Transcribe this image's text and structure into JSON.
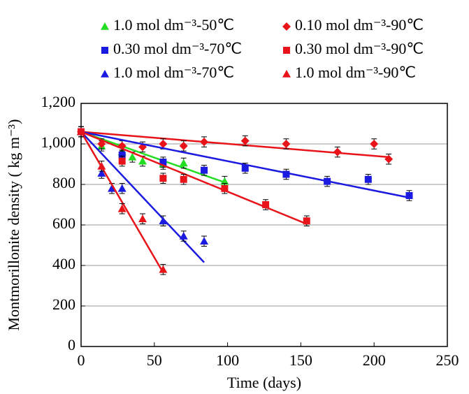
{
  "chart_data": {
    "type": "scatter",
    "x_label": "Time (days)",
    "y_label": "Montmorillonite density ( kg m⁻³)",
    "xlim": [
      0,
      250
    ],
    "xticks": [
      0,
      50,
      100,
      150,
      200,
      250
    ],
    "ylim": [
      0,
      1200
    ],
    "yticks": [
      0,
      200,
      400,
      600,
      800,
      {
        "value": 1000,
        "label": "1,000"
      },
      {
        "value": 1200,
        "label": "1,200"
      }
    ],
    "grid": true,
    "series": [
      {
        "name": "1.0 mol dm⁻³-50℃",
        "color": "#22dd22",
        "marker": "triangle",
        "x": [
          0,
          14,
          28,
          35,
          42,
          56,
          70,
          98
        ],
        "values": [
          1060,
          990,
          960,
          935,
          915,
          900,
          905,
          815
        ],
        "errors": [
          25,
          25,
          25,
          25,
          25,
          25,
          25,
          25
        ],
        "fit": {
          "x": [
            0,
            98
          ],
          "values": [
            1060,
            810
          ]
        }
      },
      {
        "name": "0.10 mol dm⁻³-90℃",
        "color": "#e8141a",
        "marker": "diamond",
        "x": [
          0,
          14,
          28,
          42,
          56,
          70,
          84,
          112,
          140,
          175,
          200,
          210
        ],
        "values": [
          1060,
          1000,
          990,
          985,
          1000,
          990,
          1010,
          1015,
          1000,
          960,
          1000,
          925
        ],
        "errors": [
          25,
          25,
          25,
          25,
          25,
          25,
          25,
          25,
          25,
          25,
          25,
          25
        ],
        "fit": {
          "x": [
            0,
            210
          ],
          "values": [
            1060,
            935
          ]
        }
      },
      {
        "name": "0.30 mol dm⁻³-70℃",
        "color": "#1a1ae0",
        "marker": "square",
        "x": [
          0,
          28,
          56,
          84,
          112,
          140,
          168,
          196,
          224
        ],
        "values": [
          1060,
          945,
          910,
          870,
          880,
          850,
          815,
          825,
          745
        ],
        "errors": [
          25,
          25,
          25,
          25,
          25,
          25,
          25,
          25,
          25
        ],
        "fit": {
          "x": [
            0,
            224
          ],
          "values": [
            1060,
            735
          ]
        }
      },
      {
        "name": "0.30 mol dm⁻³-90℃",
        "color": "#e8141a",
        "marker": "square",
        "x": [
          0,
          28,
          56,
          70,
          98,
          126,
          154
        ],
        "values": [
          1060,
          915,
          830,
          825,
          780,
          700,
          620
        ],
        "errors": [
          25,
          25,
          25,
          25,
          25,
          25,
          25
        ],
        "fit": {
          "x": [
            0,
            154
          ],
          "values": [
            1060,
            605
          ]
        }
      },
      {
        "name": "1.0 mol dm⁻³-70℃",
        "color": "#1a1ae0",
        "marker": "triangle",
        "x": [
          0,
          14,
          21,
          28,
          56,
          70,
          84
        ],
        "values": [
          1060,
          855,
          780,
          780,
          620,
          545,
          520
        ],
        "errors": [
          25,
          25,
          25,
          25,
          25,
          25,
          25
        ],
        "fit": {
          "x": [
            0,
            84
          ],
          "values": [
            1060,
            415
          ]
        }
      },
      {
        "name": "1.0 mol dm⁻³-90℃",
        "color": "#e8141a",
        "marker": "triangle",
        "x": [
          0,
          14,
          28,
          42,
          56
        ],
        "values": [
          1060,
          890,
          680,
          630,
          380
        ],
        "errors": [
          25,
          25,
          25,
          25,
          25
        ],
        "fit": {
          "x": [
            0,
            56
          ],
          "values": [
            1060,
            365
          ]
        }
      }
    ]
  }
}
